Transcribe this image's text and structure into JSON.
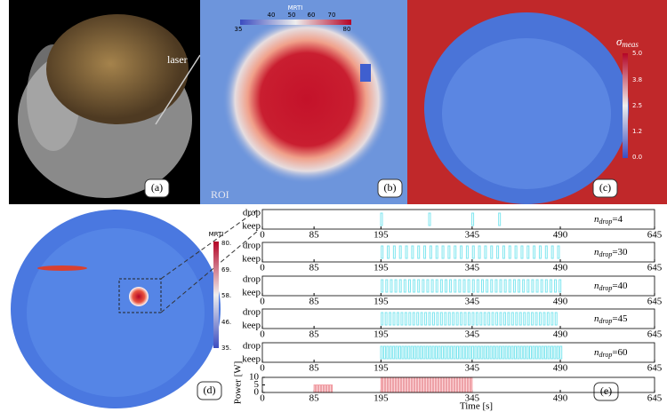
{
  "panels": {
    "a": {
      "label": "(a)",
      "annotation": "laser"
    },
    "b": {
      "label": "(b)",
      "colorbar_title": "MRTI",
      "colorbar_ticks": [
        "40",
        "50",
        "60",
        "70"
      ],
      "colorbar_min": "35",
      "colorbar_max": "80",
      "roi": "ROI"
    },
    "c": {
      "label": "(c)",
      "colorbar_symbol": "σ",
      "colorbar_subscript": "meas",
      "colorbar_ticks": [
        "5.0",
        "3.8",
        "2.5",
        "1.2",
        "0.0"
      ]
    },
    "d": {
      "label": "(d)",
      "colorbar_title": "MRTI",
      "colorbar_ticks": [
        "80.",
        "69.",
        "58.",
        "46.",
        "35."
      ]
    },
    "e": {
      "label": "(e)",
      "label_symbol": "n",
      "label_subscript": "drop"
    }
  },
  "chart_data": [
    {
      "type": "event",
      "categories": [
        "drop",
        "keep"
      ],
      "label_suffix": "=4",
      "color": "#7fe6ef",
      "x": [
        196,
        275,
        346,
        390
      ],
      "xlim": [
        0,
        645
      ],
      "xticks": [
        0,
        85,
        195,
        345,
        490,
        645
      ]
    },
    {
      "type": "event",
      "categories": [
        "drop",
        "keep"
      ],
      "label_suffix": "=30",
      "color": "#7fe6ef",
      "x": [
        197,
        207,
        217,
        227,
        237,
        247,
        257,
        267,
        277,
        287,
        297,
        307,
        317,
        327,
        337,
        347,
        357,
        367,
        377,
        387,
        397,
        407,
        417,
        427,
        437,
        447,
        457,
        467,
        477,
        487
      ],
      "xlim": [
        0,
        645
      ],
      "xticks": [
        0,
        85,
        195,
        345,
        490,
        645
      ]
    },
    {
      "type": "event",
      "categories": [
        "drop",
        "keep"
      ],
      "label_suffix": "=40",
      "color": "#7fe6ef",
      "x": [
        197,
        204.5,
        212,
        219.5,
        227,
        234.5,
        242,
        249.5,
        257,
        264.5,
        272,
        279.5,
        287,
        294.5,
        302,
        309.5,
        317,
        324.5,
        332,
        339.5,
        347,
        354.5,
        362,
        369.5,
        377,
        384.5,
        392,
        399.5,
        407,
        414.5,
        422,
        429.5,
        437,
        444.5,
        452,
        459.5,
        467,
        474.5,
        482,
        489.5
      ],
      "xlim": [
        0,
        645
      ],
      "xticks": [
        0,
        85,
        195,
        345,
        490,
        645
      ]
    },
    {
      "type": "event",
      "categories": [
        "drop",
        "keep"
      ],
      "label_suffix": "=45",
      "color": "#7fe6ef",
      "x": [
        197,
        203.5,
        210,
        216.5,
        223,
        229.5,
        236,
        242.5,
        249,
        255.5,
        262,
        268.5,
        275,
        281.5,
        288,
        294.5,
        301,
        307.5,
        314,
        320.5,
        327,
        333.5,
        340,
        346.5,
        353,
        359.5,
        366,
        372.5,
        379,
        385.5,
        392,
        398.5,
        405,
        411.5,
        418,
        424.5,
        431,
        437.5,
        444,
        450.5,
        457,
        463.5,
        470,
        476.5,
        483
      ],
      "xlim": [
        0,
        645
      ],
      "xticks": [
        0,
        85,
        195,
        345,
        490,
        645
      ]
    },
    {
      "type": "event",
      "categories": [
        "drop",
        "keep"
      ],
      "label_suffix": "=60",
      "color": "#7fe6ef",
      "x": [
        196,
        201,
        206,
        211,
        216,
        221,
        226,
        231,
        236,
        241,
        246,
        251,
        256,
        261,
        266,
        271,
        276,
        281,
        286,
        291,
        296,
        301,
        306,
        311,
        316,
        321,
        326,
        331,
        336,
        341,
        346,
        351,
        356,
        361,
        366,
        371,
        376,
        381,
        386,
        391,
        396,
        401,
        406,
        411,
        416,
        421,
        426,
        431,
        436,
        441,
        446,
        451,
        456,
        461,
        466,
        471,
        476,
        481,
        486,
        491
      ],
      "xlim": [
        0,
        645
      ],
      "xticks": [
        0,
        85,
        195,
        345,
        490,
        645
      ]
    },
    {
      "type": "power",
      "ylabel": "Power [W]",
      "xlabel": "Time [s]",
      "color": "#f4a0a6",
      "segments": [
        {
          "start": 85,
          "end": 115,
          "value": 5
        },
        {
          "start": 195,
          "end": 345,
          "value": 10
        }
      ],
      "xlim": [
        0,
        645
      ],
      "xticks": [
        0,
        85,
        195,
        345,
        490,
        645
      ],
      "ylim": [
        0,
        10
      ],
      "yticks": [
        0,
        5,
        10
      ]
    }
  ]
}
